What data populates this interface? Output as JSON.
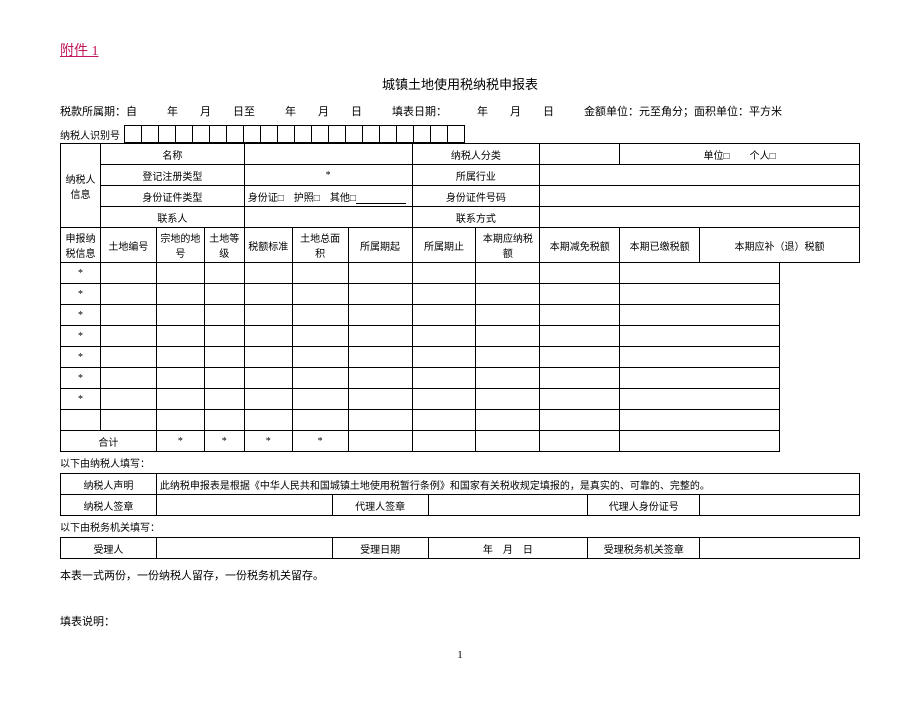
{
  "attachment": "附件 1",
  "title": "城镇土地使用税纳税申报表",
  "meta": {
    "period_label": "税款所属期：自",
    "year1": "年",
    "month1": "月",
    "day1": "日至",
    "year2": "年",
    "month2": "月",
    "day2": "日",
    "fill_date_label": "填表日期：",
    "year3": "年",
    "month3": "月",
    "day3": "日",
    "amount_unit": "金额单位：元至角分；面积单位：平方米"
  },
  "id_label": "纳税人识别号",
  "id_box_count": 20,
  "taxpayer_info": {
    "section": "纳税人信息",
    "rows": {
      "r1": {
        "c1": "名称",
        "c3": "纳税人分类",
        "c5": "单位□　　个人□"
      },
      "r2": {
        "c1": "登记注册类型",
        "c2": "*",
        "c3": "所属行业"
      },
      "r3": {
        "c1": "身份证件类型",
        "c2": "身份证□　护照□　其他□",
        "c3": "身份证件号码"
      },
      "r4": {
        "c1": "联系人",
        "c3": "联系方式"
      }
    }
  },
  "decl": {
    "section": "申报纳税信息",
    "headers": [
      "土地编号",
      "宗地的地号",
      "土地等级",
      "税额标准",
      "土地总面积",
      "所属期起",
      "所属期止",
      "本期应纳税额",
      "本期减免税额",
      "本期已缴税额",
      "本期应补（退）税额"
    ],
    "rows": [
      "*",
      "*",
      "*",
      "*",
      "*",
      "*",
      "*",
      ""
    ],
    "total_label": "合计",
    "total_marks": [
      "*",
      "*",
      "*",
      "*",
      "",
      "",
      "",
      "",
      "",
      ""
    ]
  },
  "below_taxpayer": "以下由纳税人填写：",
  "declaration": {
    "label": "纳税人声明",
    "text": "此纳税申报表是根据《中华人民共和国城镇土地使用税暂行条例》和国家有关税收规定填报的，是真实的、可靠的、完整的。"
  },
  "sign": {
    "taxpayer": "纳税人签章",
    "agent": "代理人签章",
    "agent_id": "代理人身份证号"
  },
  "below_tax_office": "以下由税务机关填写：",
  "receive": {
    "person": "受理人",
    "date_label": "受理日期",
    "date_val": "年　月　日",
    "office_stamp": "受理税务机关签章"
  },
  "footer_note": "本表一式两份，一份纳税人留存，一份税务机关留存。",
  "fill_note": "填表说明：",
  "page_num": "1"
}
